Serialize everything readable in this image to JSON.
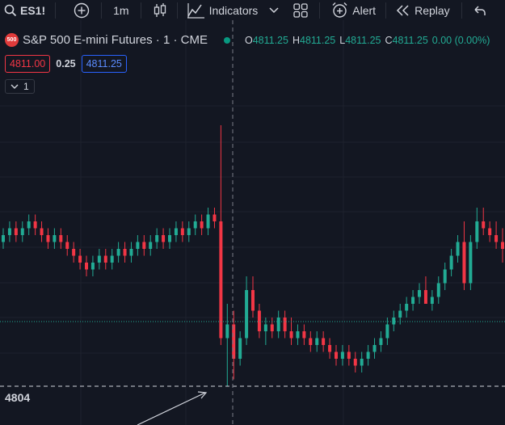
{
  "toolbar": {
    "symbol": "ES1!",
    "interval": "1m",
    "indicators_label": "Indicators",
    "alert_label": "Alert",
    "replay_label": "Replay"
  },
  "legend": {
    "logo_text": "500",
    "title": "S&P 500 E-mini Futures · 1 · CME",
    "o_key": "O",
    "o_val": "4811.25",
    "h_key": "H",
    "h_val": "4811.25",
    "l_key": "L",
    "l_val": "4811.25",
    "c_key": "C",
    "c_val": "4811.25",
    "change": "0.00 (0.00%)"
  },
  "quotes": {
    "sell": "4811.00",
    "spread": "0.25",
    "buy": "4811.25"
  },
  "collapse_count": "1",
  "price_label": "4804",
  "colors": {
    "background": "#131722",
    "up": "#22ab94",
    "down": "#f23645",
    "sell": "#f23645",
    "buy": "#2962ff",
    "grid": "#1e222d"
  },
  "chart_data": {
    "type": "candlestick",
    "y_reference": 4804,
    "series": [
      [
        4809.25,
        4809.75,
        4809,
        4809.5
      ],
      [
        4809.5,
        4810,
        4809.25,
        4809.75
      ],
      [
        4809.75,
        4810,
        4809.25,
        4809.5
      ],
      [
        4809.5,
        4810,
        4809.25,
        4809.75
      ],
      [
        4809.75,
        4810.25,
        4809.5,
        4810
      ],
      [
        4810,
        4810.25,
        4809.5,
        4809.75
      ],
      [
        4809.75,
        4810,
        4809.25,
        4809.5
      ],
      [
        4809.5,
        4809.75,
        4809,
        4809.25
      ],
      [
        4809.25,
        4809.75,
        4809,
        4809.5
      ],
      [
        4809.5,
        4809.75,
        4809,
        4809.25
      ],
      [
        4809.25,
        4809.5,
        4808.75,
        4809
      ],
      [
        4809,
        4809.25,
        4808.5,
        4808.75
      ],
      [
        4808.75,
        4809,
        4808.25,
        4808.5
      ],
      [
        4808.5,
        4808.75,
        4808,
        4808.25
      ],
      [
        4808.25,
        4808.75,
        4808,
        4808.5
      ],
      [
        4808.5,
        4809,
        4808.25,
        4808.75
      ],
      [
        4808.75,
        4809,
        4808.25,
        4808.5
      ],
      [
        4808.5,
        4809,
        4808.25,
        4808.75
      ],
      [
        4808.75,
        4809.25,
        4808.5,
        4809
      ],
      [
        4809,
        4809.25,
        4808.5,
        4808.75
      ],
      [
        4808.75,
        4809.25,
        4808.5,
        4809
      ],
      [
        4809,
        4809.5,
        4808.75,
        4809.25
      ],
      [
        4809.25,
        4809.5,
        4808.75,
        4809
      ],
      [
        4809,
        4809.5,
        4808.75,
        4809.25
      ],
      [
        4809.25,
        4809.75,
        4809,
        4809.5
      ],
      [
        4809.5,
        4809.75,
        4809,
        4809.25
      ],
      [
        4809.25,
        4809.75,
        4809,
        4809.5
      ],
      [
        4809.5,
        4810,
        4809.25,
        4809.75
      ],
      [
        4809.75,
        4810,
        4809.25,
        4809.5
      ],
      [
        4809.5,
        4810,
        4809.25,
        4809.75
      ],
      [
        4809.75,
        4810.25,
        4809.5,
        4810
      ],
      [
        4810,
        4810.25,
        4809.5,
        4809.75
      ],
      [
        4809.75,
        4810.5,
        4809.5,
        4810.25
      ],
      [
        4810.25,
        4810.5,
        4809.75,
        4810
      ],
      [
        4810,
        4813.5,
        4805.5,
        4805.75
      ],
      [
        4805.75,
        4807,
        4804,
        4806.25
      ],
      [
        4806.25,
        4806.75,
        4804.25,
        4805
      ],
      [
        4805,
        4806,
        4804.75,
        4805.75
      ],
      [
        4805.75,
        4808,
        4805.5,
        4807.5
      ],
      [
        4807.5,
        4808,
        4806.5,
        4806.75
      ],
      [
        4806.75,
        4807,
        4805.75,
        4806
      ],
      [
        4806,
        4806.5,
        4805.5,
        4806.25
      ],
      [
        4806.25,
        4806.5,
        4805.75,
        4806
      ],
      [
        4806,
        4806.75,
        4805.75,
        4806.5
      ],
      [
        4806.5,
        4806.75,
        4805.75,
        4806
      ],
      [
        4806,
        4806.5,
        4805.5,
        4805.75
      ],
      [
        4805.75,
        4806.25,
        4805.5,
        4806
      ],
      [
        4806,
        4806.25,
        4805.5,
        4805.75
      ],
      [
        4805.75,
        4806,
        4805.25,
        4805.5
      ],
      [
        4805.5,
        4806,
        4805.25,
        4805.75
      ],
      [
        4805.75,
        4806,
        4805.25,
        4805.5
      ],
      [
        4805.5,
        4805.75,
        4805,
        4805.25
      ],
      [
        4805.25,
        4805.5,
        4804.75,
        4805
      ],
      [
        4805,
        4805.5,
        4804.75,
        4805.25
      ],
      [
        4805.25,
        4805.5,
        4804.75,
        4805
      ],
      [
        4805,
        4805.25,
        4804.5,
        4804.75
      ],
      [
        4804.75,
        4805.25,
        4804.5,
        4805
      ],
      [
        4805,
        4805.5,
        4804.75,
        4805.25
      ],
      [
        4805.25,
        4805.75,
        4805,
        4805.5
      ],
      [
        4805.5,
        4806,
        4805.25,
        4805.75
      ],
      [
        4805.75,
        4806.5,
        4805.5,
        4806.25
      ],
      [
        4806.25,
        4806.75,
        4806,
        4806.5
      ],
      [
        4806.5,
        4807,
        4806.25,
        4806.75
      ],
      [
        4806.75,
        4807.25,
        4806.5,
        4807
      ],
      [
        4807,
        4807.5,
        4806.75,
        4807.25
      ],
      [
        4807.25,
        4807.75,
        4807,
        4807.5
      ],
      [
        4807.5,
        4808,
        4807,
        4807
      ],
      [
        4807,
        4807.5,
        4806.75,
        4807.25
      ],
      [
        4807.25,
        4808,
        4807,
        4807.75
      ],
      [
        4807.75,
        4808.5,
        4807.5,
        4808.25
      ],
      [
        4808.25,
        4809,
        4808,
        4808.75
      ],
      [
        4808.75,
        4809.5,
        4808.5,
        4809.25
      ],
      [
        4809.25,
        4810,
        4807.5,
        4807.75
      ],
      [
        4807.75,
        4809.5,
        4807.5,
        4809.25
      ],
      [
        4809.25,
        4810.5,
        4809,
        4810
      ],
      [
        4810,
        4810.5,
        4809.5,
        4809.75
      ],
      [
        4809.75,
        4810,
        4809.25,
        4809.5
      ],
      [
        4809.5,
        4810,
        4809,
        4809.25
      ],
      [
        4809.25,
        4809.75,
        4808.5,
        4809
      ]
    ]
  }
}
